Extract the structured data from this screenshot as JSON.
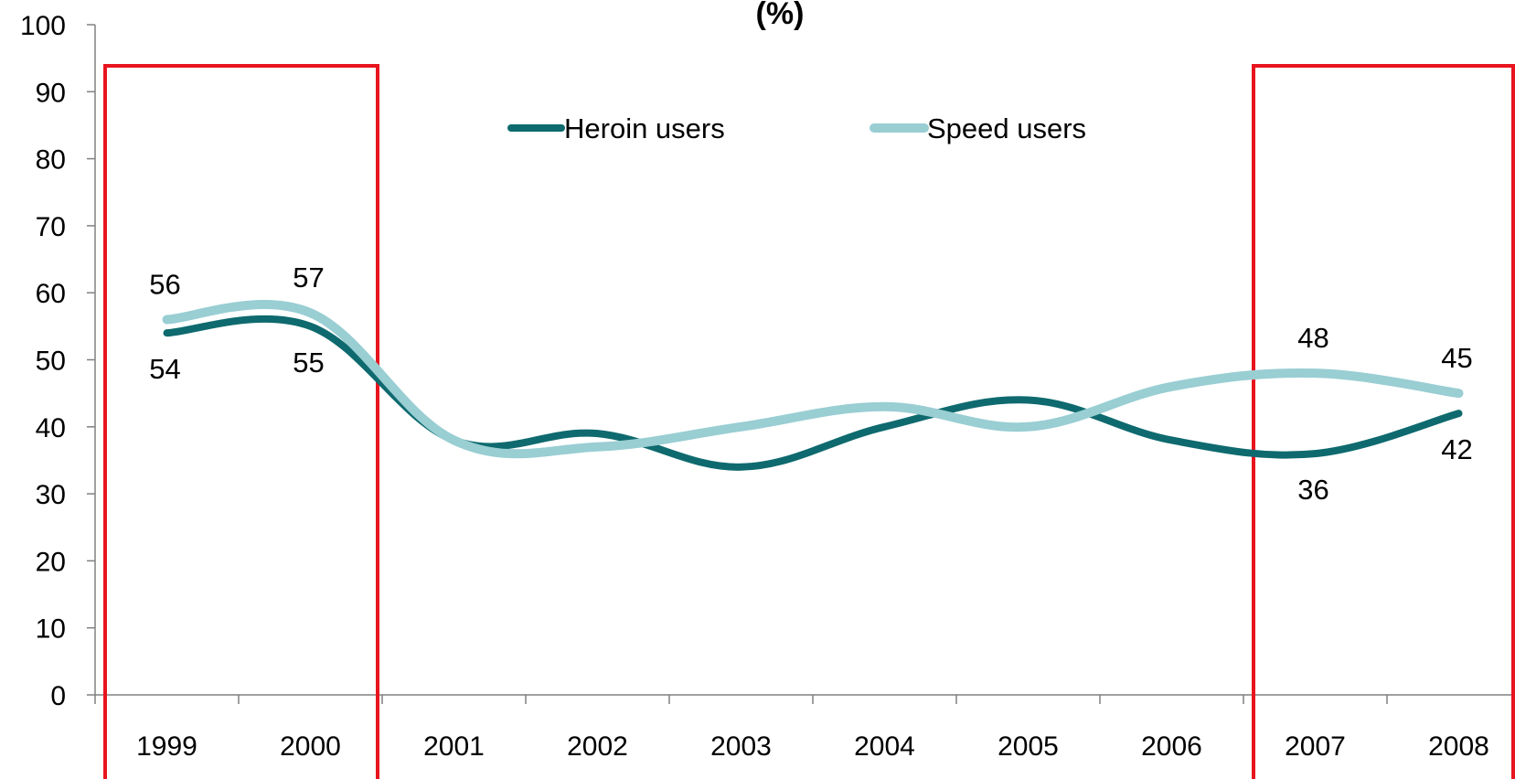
{
  "chart_data": {
    "type": "line",
    "title": "(%)",
    "categories": [
      "1999",
      "2000",
      "2001",
      "2002",
      "2003",
      "2004",
      "2005",
      "2006",
      "2007",
      "2008"
    ],
    "series": [
      {
        "name": "Heroin users",
        "values": [
          54,
          55,
          38,
          39,
          34,
          40,
          44,
          38,
          36,
          42
        ],
        "color": "#0e6a6e"
      },
      {
        "name": "Speed users",
        "values": [
          56,
          57,
          38,
          37,
          40,
          43,
          40,
          46,
          48,
          45
        ],
        "color": "#99ced3"
      }
    ],
    "data_labels": {
      "Heroin users": {
        "1999": "54",
        "2000": "55",
        "2007": "36",
        "2008": "42"
      },
      "Speed users": {
        "1999": "56",
        "2000": "57",
        "2007": "48",
        "2008": "45"
      }
    },
    "ylim": [
      0,
      100
    ],
    "yticks": [
      "0",
      "10",
      "20",
      "30",
      "40",
      "50",
      "60",
      "70",
      "80",
      "90",
      "100"
    ],
    "xlabel": "",
    "ylabel": "",
    "grid": false,
    "legend": "top-center",
    "highlight_color": "#e8141e",
    "highlighted_categories": [
      [
        "1999",
        "2000"
      ],
      [
        "2007",
        "2008"
      ]
    ]
  }
}
